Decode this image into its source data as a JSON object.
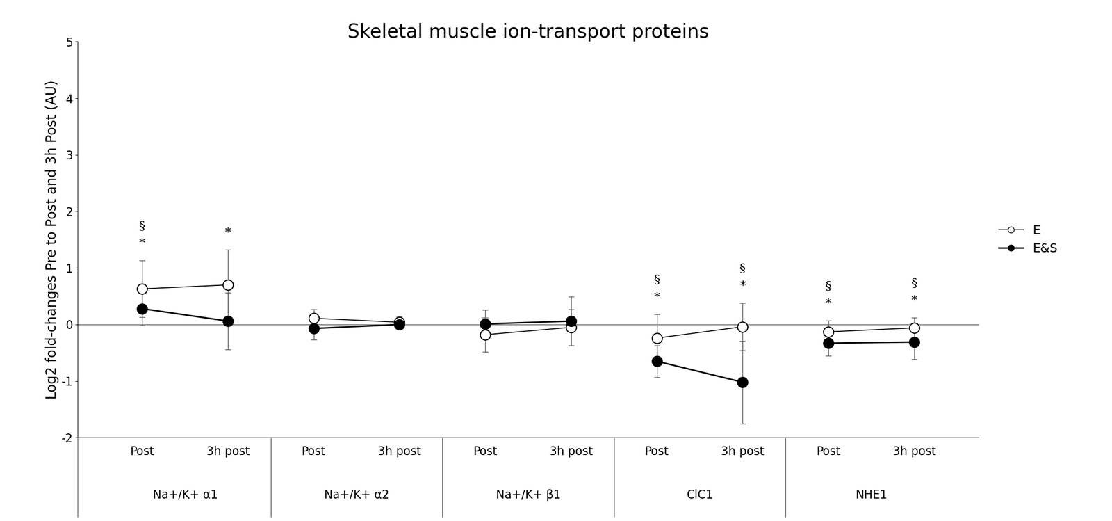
{
  "chart_data": {
    "type": "line",
    "title": "Skeletal muscle ion-transport proteins",
    "y_label": "Log2 fold-changes Pre to Post and 3h Post (AU)",
    "categories": [
      "Post",
      "3h post",
      "Post",
      "3h post",
      "Post",
      "3h post",
      "Post",
      "3h post",
      "Post",
      "3h post"
    ],
    "groups": [
      "Na+/K+ α1",
      "Na+/K+ α2",
      "Na+/K+ β1",
      "ClC1",
      "NHE1"
    ],
    "series": [
      {
        "name": "E",
        "color": "#000000",
        "marker": "open_circle",
        "line_style": "solid",
        "values": [
          0.63,
          0.7,
          0.11,
          0.04,
          -0.18,
          -0.05,
          -0.24,
          -0.04,
          -0.13,
          -0.06
        ],
        "errors": [
          0.5,
          0.62,
          0.16,
          0.1,
          0.3,
          0.32,
          0.42,
          0.42,
          0.2,
          0.18
        ]
      },
      {
        "name": "E&S",
        "color": "#000000",
        "marker": "filled_circle",
        "line_style": "solid",
        "values": [
          0.28,
          0.06,
          -0.07,
          0.0,
          0.01,
          0.06,
          -0.65,
          -1.02,
          -0.33,
          -0.31
        ],
        "errors": [
          0.3,
          0.5,
          0.2,
          0.08,
          0.25,
          0.43,
          0.28,
          0.73,
          0.22,
          0.3
        ]
      }
    ],
    "significance": [
      [
        "*",
        "§"
      ],
      [
        "*"
      ],
      [],
      [],
      [],
      [],
      [
        "*",
        "§"
      ],
      [
        "*",
        "§"
      ],
      [
        "*",
        "§"
      ],
      [
        "*",
        "§"
      ]
    ],
    "ylim": [
      -2,
      5
    ],
    "yticks": [
      -2,
      -1,
      0,
      1,
      2,
      3,
      4,
      5
    ],
    "legend": "right",
    "grid": false
  }
}
